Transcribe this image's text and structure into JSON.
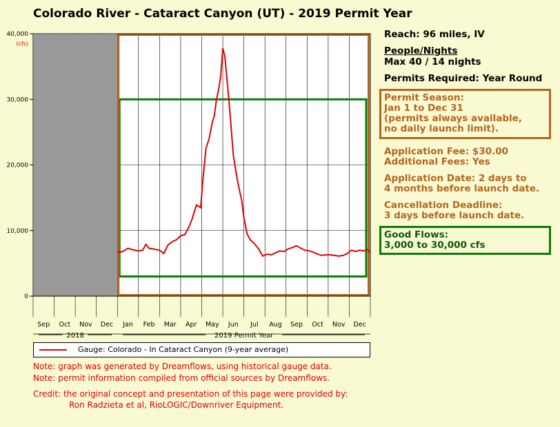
{
  "title": "Colorado River - Cataract Canyon (UT) - 2019 Permit Year",
  "info": {
    "reach": "Reach: 96 miles, IV",
    "people_nights_heading": "People/Nights",
    "people_nights_value": "Max 40 / 14 nights",
    "permits_required": "Permits Required: Year Round",
    "season_line1": "Permit Season:",
    "season_line2": "Jan 1 to Dec 31",
    "season_line3": "(permits always available,",
    "season_line4": "no daily launch limit).",
    "app_fee": "Application Fee: $30.00",
    "additional_fees": "Additional Fees: Yes",
    "app_date_line1": "Application Date: 2 days to",
    "app_date_line2": "4 months before launch date.",
    "cancel_line1": "Cancellation Deadline:",
    "cancel_line2": "3 days before launch date.",
    "flows_line1": "Good Flows:",
    "flows_line2": "3,000 to 30,000 cfs"
  },
  "notes": {
    "note1": "Note: graph was generated by Dreamflows, using historical gauge data.",
    "note2": "Note: permit information compiled from official sources by Dreamflows.",
    "credit1": "Credit: the original concept and presentation of this page were provided by:",
    "credit2": "Ron Radzieta et al, RioLOGIC/Downriver Equipment."
  },
  "colors": {
    "background": "#fafad2",
    "series": "#e00000",
    "permit_box": "#b5651d",
    "good_flows": "#0a7a0a",
    "prior_year_shade": "#999999"
  },
  "chart_data": {
    "type": "line",
    "unit": "(cfs)",
    "ylim": [
      0,
      40000
    ],
    "y_ticks": [
      {
        "value": 0,
        "label": "0"
      },
      {
        "value": 10000,
        "label": "10,000"
      },
      {
        "value": 20000,
        "label": "20,000"
      },
      {
        "value": 30000,
        "label": "30,000"
      },
      {
        "value": 40000,
        "label": "40,000"
      }
    ],
    "months": [
      "Sep",
      "Oct",
      "Nov",
      "Dec",
      "Jan",
      "Feb",
      "Mar",
      "Apr",
      "May",
      "Jun",
      "Jul",
      "Aug",
      "Sep",
      "Oct",
      "Nov",
      "Dec"
    ],
    "year_groups": [
      {
        "label": "2018",
        "start": 0,
        "end": 4
      },
      {
        "label": "2019 Permit Year",
        "start": 4,
        "end": 16
      }
    ],
    "shaded_prior_year_months": [
      0,
      4
    ],
    "permit_season_months": [
      4,
      16
    ],
    "good_flows_range": [
      3000,
      30000
    ],
    "series": [
      {
        "name": "Gauge: Colorado - In Cataract Canyon (9-year average)",
        "x": [
          4.0,
          4.15,
          4.3,
          4.5,
          4.7,
          5.0,
          5.2,
          5.35,
          5.5,
          5.7,
          6.0,
          6.2,
          6.4,
          6.6,
          6.8,
          7.0,
          7.2,
          7.4,
          7.55,
          7.65,
          7.75,
          7.85,
          7.95,
          8.05,
          8.2,
          8.35,
          8.5,
          8.6,
          8.7,
          8.8,
          8.9,
          9.0,
          9.1,
          9.2,
          9.3,
          9.4,
          9.5,
          9.6,
          9.7,
          9.8,
          9.9,
          10.0,
          10.15,
          10.3,
          10.5,
          10.7,
          10.9,
          11.1,
          11.3,
          11.5,
          11.7,
          11.9,
          12.1,
          12.3,
          12.5,
          12.7,
          12.9,
          13.1,
          13.3,
          13.5,
          13.7,
          13.9,
          14.1,
          14.3,
          14.5,
          14.7,
          14.9,
          15.1,
          15.3,
          15.5,
          15.7,
          15.85,
          16.0
        ],
        "y": [
          6800,
          6700,
          6900,
          7300,
          7100,
          6900,
          7000,
          7900,
          7300,
          7200,
          7000,
          6500,
          7800,
          8300,
          8600,
          9200,
          9400,
          10600,
          11800,
          12900,
          13900,
          13700,
          13500,
          17500,
          22500,
          24000,
          26500,
          27500,
          30000,
          31500,
          33500,
          37800,
          36500,
          33000,
          29500,
          25500,
          21500,
          19500,
          17500,
          16000,
          14500,
          12000,
          9500,
          8600,
          8000,
          7200,
          6100,
          6400,
          6300,
          6600,
          6900,
          6800,
          7200,
          7400,
          7700,
          7300,
          7000,
          6900,
          6700,
          6400,
          6200,
          6300,
          6300,
          6200,
          6100,
          6200,
          6500,
          7000,
          6800,
          7000,
          6900,
          7100,
          6700
        ]
      }
    ]
  }
}
